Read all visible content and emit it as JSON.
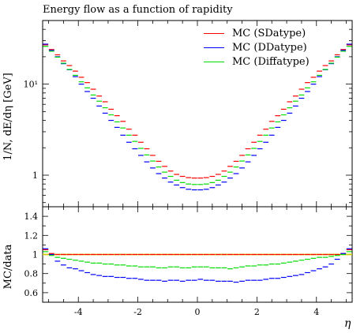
{
  "chart_data": [
    {
      "type": "scatter",
      "title": "Energy flow as a function of rapidity",
      "ylabel": "1/N, dE/dη [GeV]",
      "xlim": [
        -5.2,
        5.2
      ],
      "ylim": [
        0.45,
        50
      ],
      "yscale": "log",
      "ytick_labels": [
        "1",
        "10¹"
      ],
      "legend_position": "top-right",
      "series": [
        {
          "name": "MC (SDatype)",
          "color": "#ff0000",
          "x": [
            -5.1,
            -4.9,
            -4.7,
            -4.5,
            -4.3,
            -4.1,
            -3.9,
            -3.7,
            -3.5,
            -3.3,
            -3.1,
            -2.9,
            -2.7,
            -2.5,
            -2.3,
            -2.1,
            -1.9,
            -1.7,
            -1.5,
            -1.3,
            -1.1,
            -0.9,
            -0.7,
            -0.5,
            -0.3,
            -0.1,
            0.1,
            0.3,
            0.5,
            0.7,
            0.9,
            1.1,
            1.3,
            1.5,
            1.7,
            1.9,
            2.1,
            2.3,
            2.5,
            2.7,
            2.9,
            3.1,
            3.3,
            3.5,
            3.7,
            3.9,
            4.1,
            4.3,
            4.5,
            4.7,
            4.9,
            5.1
          ],
          "y": [
            27.0,
            24.0,
            21.0,
            18.0,
            16.0,
            13.9,
            11.9,
            10.4,
            8.8,
            7.4,
            6.4,
            5.3,
            4.5,
            3.9,
            3.2,
            2.75,
            2.3,
            1.95,
            1.65,
            1.42,
            1.25,
            1.11,
            1.02,
            0.97,
            0.94,
            0.93,
            0.93,
            0.94,
            0.97,
            1.02,
            1.11,
            1.25,
            1.42,
            1.65,
            1.95,
            2.3,
            2.75,
            3.2,
            3.9,
            4.5,
            5.3,
            6.4,
            7.4,
            8.8,
            10.4,
            11.9,
            13.9,
            16.0,
            18.0,
            21.0,
            24.0,
            27.0
          ]
        },
        {
          "name": "MC (DDatype)",
          "color": "#0000ff",
          "x": [
            -5.1,
            -4.9,
            -4.7,
            -4.5,
            -4.3,
            -4.1,
            -3.9,
            -3.7,
            -3.5,
            -3.3,
            -3.1,
            -2.9,
            -2.7,
            -2.5,
            -2.3,
            -2.1,
            -1.9,
            -1.7,
            -1.5,
            -1.3,
            -1.1,
            -0.9,
            -0.7,
            -0.5,
            -0.3,
            -0.1,
            0.1,
            0.3,
            0.5,
            0.7,
            0.9,
            1.1,
            1.3,
            1.5,
            1.7,
            1.9,
            2.1,
            2.3,
            2.5,
            2.7,
            2.9,
            3.1,
            3.3,
            3.5,
            3.7,
            3.9,
            4.1,
            4.3,
            4.5,
            4.7,
            4.9,
            5.1
          ],
          "y": [
            27.5,
            23.5,
            20.0,
            16.8,
            14.4,
            12.1,
            10.0,
            8.3,
            7.0,
            5.75,
            4.8,
            4.0,
            3.35,
            2.75,
            2.3,
            1.95,
            1.65,
            1.4,
            1.2,
            1.04,
            0.93,
            0.84,
            0.78,
            0.73,
            0.7,
            0.69,
            0.69,
            0.7,
            0.73,
            0.78,
            0.84,
            0.93,
            1.04,
            1.2,
            1.4,
            1.65,
            1.95,
            2.3,
            2.75,
            3.35,
            4.0,
            4.8,
            5.75,
            7.0,
            8.3,
            10.0,
            12.1,
            14.4,
            16.8,
            20.0,
            23.5,
            27.5
          ]
        },
        {
          "name": "MC (Diffatype)",
          "color": "#00dd00",
          "x": [
            -5.1,
            -4.9,
            -4.7,
            -4.5,
            -4.3,
            -4.1,
            -3.9,
            -3.7,
            -3.5,
            -3.3,
            -3.1,
            -2.9,
            -2.7,
            -2.5,
            -2.3,
            -2.1,
            -1.9,
            -1.7,
            -1.5,
            -1.3,
            -1.1,
            -0.9,
            -0.7,
            -0.5,
            -0.3,
            -0.1,
            0.1,
            0.3,
            0.5,
            0.7,
            0.9,
            1.1,
            1.3,
            1.5,
            1.7,
            1.9,
            2.1,
            2.3,
            2.5,
            2.7,
            2.9,
            3.1,
            3.3,
            3.5,
            3.7,
            3.9,
            4.1,
            4.3,
            4.5,
            4.7,
            4.9,
            5.1
          ],
          "y": [
            26.0,
            23.0,
            19.8,
            17.0,
            14.5,
            12.5,
            10.6,
            9.1,
            7.6,
            6.5,
            5.5,
            4.6,
            3.85,
            3.3,
            2.75,
            2.35,
            1.97,
            1.67,
            1.43,
            1.23,
            1.08,
            0.97,
            0.88,
            0.83,
            0.8,
            0.79,
            0.79,
            0.8,
            0.83,
            0.88,
            0.97,
            1.08,
            1.23,
            1.43,
            1.67,
            1.97,
            2.35,
            2.75,
            3.3,
            3.85,
            4.6,
            5.5,
            6.5,
            7.6,
            9.1,
            10.6,
            12.5,
            14.5,
            17.0,
            19.8,
            23.0,
            26.0
          ]
        }
      ]
    },
    {
      "type": "scatter",
      "xlabel": "η",
      "ylabel": "MC/data",
      "xlim": [
        -5.2,
        5.2
      ],
      "ylim": [
        0.5,
        1.5
      ],
      "xticks": [
        -4,
        -2,
        0,
        2,
        4
      ],
      "xtick_labels": [
        "-4",
        "-2",
        "0",
        "2",
        "4"
      ],
      "yticks": [
        0.6,
        0.8,
        1.0,
        1.2,
        1.4
      ],
      "ytick_labels": [
        "0.6",
        "0.8",
        "1",
        "1.2",
        "1.4"
      ],
      "reference_line": {
        "y": 1.0,
        "color": "#d4c800"
      },
      "series": [
        {
          "name": "MC (SDatype)",
          "color": "#ff0000",
          "x": [
            -5.1,
            -4.9,
            -4.7,
            -4.5,
            -4.3,
            -4.1,
            -3.9,
            -3.7,
            -3.5,
            -3.3,
            -3.1,
            -2.9,
            -2.7,
            -2.5,
            -2.3,
            -2.1,
            -1.9,
            -1.7,
            -1.5,
            -1.3,
            -1.1,
            -0.9,
            -0.7,
            -0.5,
            -0.3,
            -0.1,
            0.1,
            0.3,
            0.5,
            0.7,
            0.9,
            1.1,
            1.3,
            1.5,
            1.7,
            1.9,
            2.1,
            2.3,
            2.5,
            2.7,
            2.9,
            3.1,
            3.3,
            3.5,
            3.7,
            3.9,
            4.1,
            4.3,
            4.5,
            4.7,
            4.9,
            5.1
          ],
          "y": [
            1.05,
            1.01,
            1.0,
            1.0,
            1.0,
            1.0,
            1.0,
            1.0,
            1.0,
            1.0,
            1.0,
            1.0,
            1.0,
            1.0,
            1.0,
            1.0,
            1.0,
            1.0,
            1.0,
            1.0,
            1.0,
            1.0,
            1.0,
            1.0,
            1.0,
            1.0,
            1.0,
            1.0,
            1.0,
            1.0,
            1.0,
            1.0,
            1.0,
            1.0,
            1.0,
            1.0,
            1.0,
            1.0,
            1.0,
            1.0,
            1.0,
            1.0,
            1.0,
            1.0,
            1.0,
            1.0,
            1.0,
            1.0,
            1.0,
            1.0,
            1.01,
            1.05
          ]
        },
        {
          "name": "MC (DDatype)",
          "color": "#0000ff",
          "x": [
            -5.1,
            -4.9,
            -4.7,
            -4.5,
            -4.3,
            -4.1,
            -3.9,
            -3.7,
            -3.5,
            -3.3,
            -3.1,
            -2.9,
            -2.7,
            -2.5,
            -2.3,
            -2.1,
            -1.9,
            -1.7,
            -1.5,
            -1.3,
            -1.1,
            -0.9,
            -0.7,
            -0.5,
            -0.3,
            -0.1,
            0.1,
            0.3,
            0.5,
            0.7,
            0.9,
            1.1,
            1.3,
            1.5,
            1.7,
            1.9,
            2.1,
            2.3,
            2.5,
            2.7,
            2.9,
            3.1,
            3.3,
            3.5,
            3.7,
            3.9,
            4.1,
            4.3,
            4.5,
            4.7,
            4.9,
            5.1
          ],
          "y": [
            1.06,
            1.0,
            0.93,
            0.89,
            0.86,
            0.85,
            0.83,
            0.81,
            0.79,
            0.78,
            0.77,
            0.77,
            0.76,
            0.76,
            0.75,
            0.75,
            0.74,
            0.73,
            0.73,
            0.73,
            0.72,
            0.73,
            0.73,
            0.72,
            0.73,
            0.73,
            0.74,
            0.73,
            0.73,
            0.72,
            0.72,
            0.72,
            0.71,
            0.72,
            0.73,
            0.73,
            0.73,
            0.74,
            0.75,
            0.75,
            0.76,
            0.77,
            0.78,
            0.79,
            0.81,
            0.83,
            0.85,
            0.87,
            0.9,
            0.95,
            1.01,
            1.06
          ]
        },
        {
          "name": "MC (Diffatype)",
          "color": "#00dd00",
          "x": [
            -5.1,
            -4.9,
            -4.7,
            -4.5,
            -4.3,
            -4.1,
            -3.9,
            -3.7,
            -3.5,
            -3.3,
            -3.1,
            -2.9,
            -2.7,
            -2.5,
            -2.3,
            -2.1,
            -1.9,
            -1.7,
            -1.5,
            -1.3,
            -1.1,
            -0.9,
            -0.7,
            -0.5,
            -0.3,
            -0.1,
            0.1,
            0.3,
            0.5,
            0.7,
            0.9,
            1.1,
            1.3,
            1.5,
            1.7,
            1.9,
            2.1,
            2.3,
            2.5,
            2.7,
            2.9,
            3.1,
            3.3,
            3.5,
            3.7,
            3.9,
            4.1,
            4.3,
            4.5,
            4.7,
            4.9,
            5.1
          ],
          "y": [
            1.03,
            0.99,
            0.97,
            0.96,
            0.95,
            0.94,
            0.93,
            0.92,
            0.91,
            0.91,
            0.9,
            0.9,
            0.89,
            0.89,
            0.88,
            0.88,
            0.87,
            0.87,
            0.87,
            0.86,
            0.86,
            0.87,
            0.87,
            0.86,
            0.86,
            0.87,
            0.87,
            0.87,
            0.86,
            0.86,
            0.86,
            0.85,
            0.86,
            0.87,
            0.88,
            0.88,
            0.89,
            0.89,
            0.9,
            0.9,
            0.91,
            0.92,
            0.93,
            0.94,
            0.95,
            0.96,
            0.97,
            0.97,
            0.98,
            0.99,
            1.0,
            1.03
          ]
        }
      ]
    }
  ]
}
